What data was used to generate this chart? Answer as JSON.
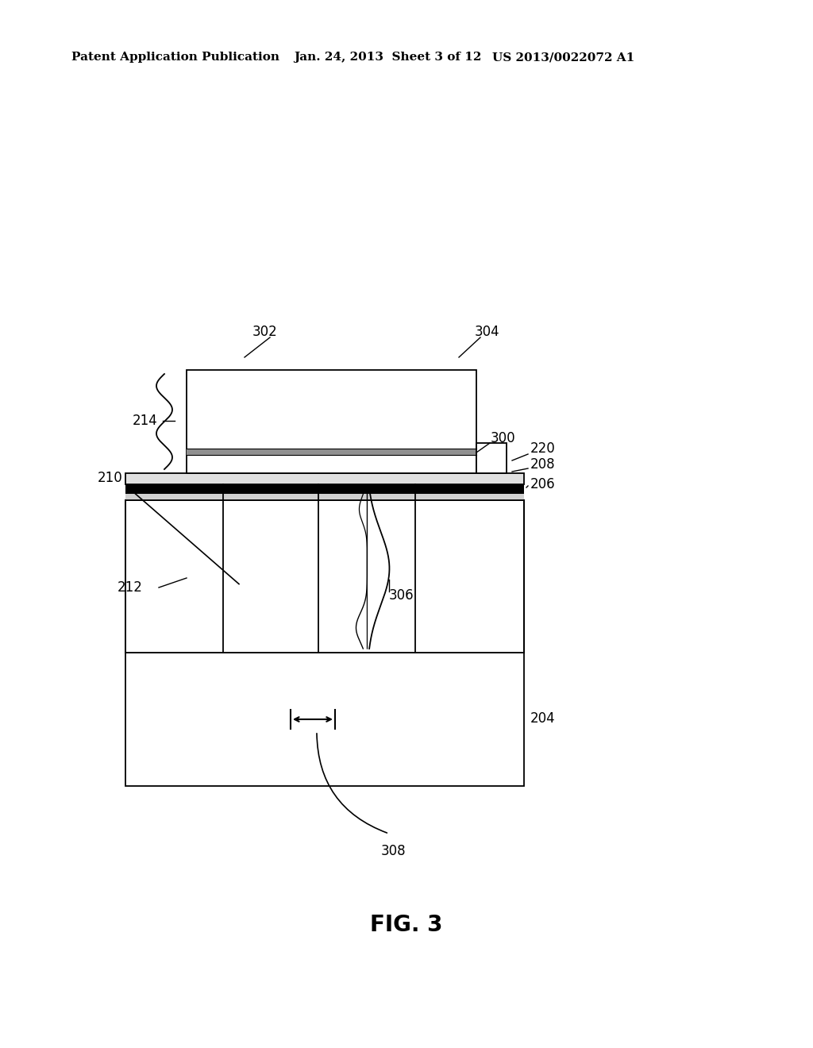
{
  "bg_color": "#ffffff",
  "header_line1": "Patent Application Publication",
  "header_line2": "Jan. 24, 2013  Sheet 3 of 12",
  "header_line3": "US 2013/0022072 A1",
  "fig_label": "FIG. 3",
  "lw_main": 1.3,
  "white": "#ffffff",
  "black": "#000000",
  "light_gray": "#f5f5f5"
}
